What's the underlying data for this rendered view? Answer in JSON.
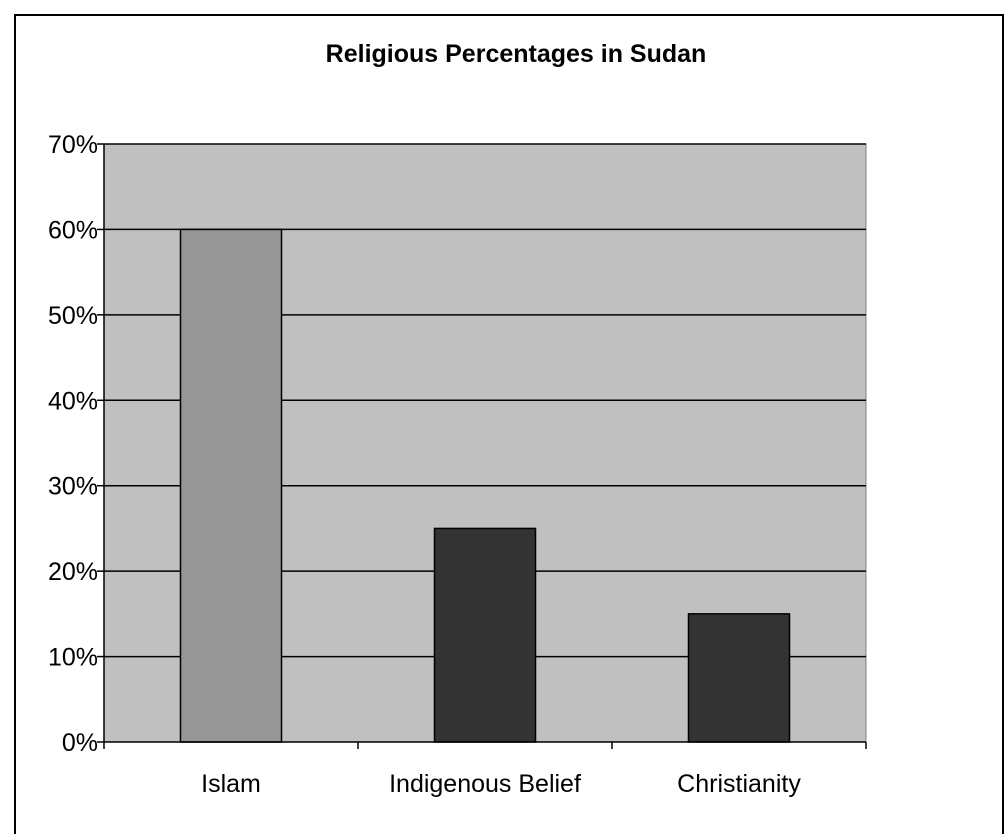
{
  "chart_data": {
    "type": "bar",
    "title": "Religious Percentages in Sudan",
    "xlabel": "",
    "ylabel": "",
    "categories": [
      "Islam",
      "Indigenous Belief",
      "Christianity"
    ],
    "values": [
      60,
      25,
      15
    ],
    "ylim": [
      0,
      70
    ],
    "yticks": [
      0,
      10,
      20,
      30,
      40,
      50,
      60,
      70
    ],
    "ytick_labels": [
      "0%",
      "10%",
      "20%",
      "30%",
      "40%",
      "50%",
      "60%",
      "70%"
    ],
    "grid": true,
    "legend": "none",
    "colors": {
      "plot_background": "#c0c0c0",
      "gridline": "#000000",
      "bars": [
        "#969696",
        "#333333",
        "#333333"
      ]
    }
  }
}
